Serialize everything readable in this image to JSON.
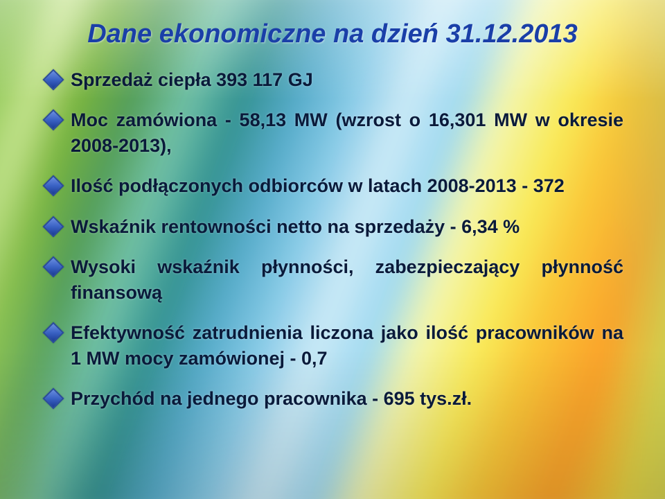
{
  "title_text": "Dane ekonomiczne na dzień 31.12.2013",
  "title_color": "#1a3fa8",
  "body_color": "#0a1a3a",
  "bullet_marker_color": "#2a4a9c",
  "bullets": [
    "Sprzedaż ciepła 393 117 GJ",
    "Moc zamówiona - 58,13 MW (wzrost o  16,301 MW w okresie 2008-2013),",
    "Ilość podłączonych odbiorców w latach 2008-2013 - 372",
    "Wskaźnik rentowności netto na sprzedaży - 6,34 %",
    "Wysoki wskaźnik płynności, zabezpieczający płynność finansową",
    "Efektywność zatrudnienia liczona jako ilość pracowników na 1 MW mocy zamówionej - 0,7",
    "Przychód na jednego pracownika - 695 tys.zł."
  ],
  "background_gradient_colors": [
    "#5a8f3a",
    "#8bbf5a",
    "#cfe6a0",
    "#7fb24a",
    "#5a9a60",
    "#7abfa8",
    "#3d8f8f",
    "#5fa9c3",
    "#8fc9e2",
    "#cfe9f4",
    "#a5d8ec",
    "#f3f5b8",
    "#f6e96a",
    "#f3c64a",
    "#f0a23a",
    "#e6d050",
    "#e9c34a"
  ],
  "title_fontsize": 38,
  "body_fontsize": 27
}
